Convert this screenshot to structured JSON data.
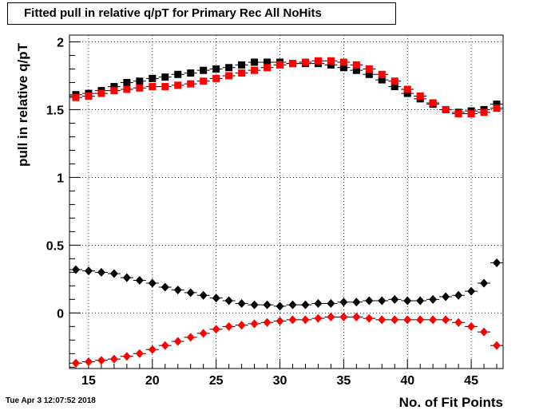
{
  "canvas": {
    "title": "Fitted pull in relative q/pT for Primary Rec All NoHits",
    "timestamp": "Tue Apr  3 12:07:52 2018"
  },
  "chart_data": {
    "type": "scatter",
    "title": "Fitted pull in relative q/pT for Primary Rec All NoHits",
    "xlabel": "No. of Fit Points",
    "ylabel": "pull in relative q/pT",
    "xlim": [
      13.5,
      47.5
    ],
    "ylim": [
      -0.41,
      2.05
    ],
    "xticks": [
      15,
      20,
      25,
      30,
      35,
      40,
      45
    ],
    "yticks": [
      0,
      0.5,
      1,
      1.5,
      2
    ],
    "ytick_labels": [
      "0",
      "0.5",
      "1",
      "1.5",
      "2"
    ],
    "grid": true,
    "x": [
      14,
      15,
      16,
      17,
      18,
      19,
      20,
      21,
      22,
      23,
      24,
      25,
      26,
      27,
      28,
      29,
      30,
      31,
      32,
      33,
      34,
      35,
      36,
      37,
      38,
      39,
      40,
      41,
      42,
      43,
      44,
      45,
      46,
      47
    ],
    "series": [
      {
        "color": "#000000",
        "marker": "square",
        "values": [
          1.61,
          1.62,
          1.64,
          1.67,
          1.7,
          1.71,
          1.73,
          1.74,
          1.76,
          1.77,
          1.79,
          1.8,
          1.81,
          1.83,
          1.85,
          1.85,
          1.85,
          1.84,
          1.84,
          1.84,
          1.83,
          1.81,
          1.79,
          1.76,
          1.72,
          1.67,
          1.62,
          1.58,
          1.54,
          1.5,
          1.48,
          1.49,
          1.5,
          1.54
        ]
      },
      {
        "color": "#ff0000",
        "marker": "square",
        "values": [
          1.59,
          1.6,
          1.62,
          1.64,
          1.65,
          1.66,
          1.67,
          1.67,
          1.68,
          1.69,
          1.71,
          1.73,
          1.75,
          1.77,
          1.79,
          1.81,
          1.83,
          1.84,
          1.85,
          1.86,
          1.86,
          1.85,
          1.83,
          1.8,
          1.76,
          1.71,
          1.65,
          1.6,
          1.55,
          1.5,
          1.47,
          1.47,
          1.48,
          1.51
        ]
      },
      {
        "color": "#000000",
        "marker": "diamond",
        "values": [
          0.32,
          0.31,
          0.3,
          0.29,
          0.26,
          0.24,
          0.22,
          0.19,
          0.17,
          0.15,
          0.13,
          0.11,
          0.09,
          0.07,
          0.06,
          0.06,
          0.05,
          0.06,
          0.06,
          0.07,
          0.07,
          0.08,
          0.08,
          0.09,
          0.09,
          0.1,
          0.09,
          0.09,
          0.1,
          0.12,
          0.13,
          0.16,
          0.22,
          0.37
        ]
      },
      {
        "color": "#ff0000",
        "marker": "diamond",
        "values": [
          -0.37,
          -0.36,
          -0.35,
          -0.34,
          -0.32,
          -0.3,
          -0.27,
          -0.24,
          -0.21,
          -0.18,
          -0.15,
          -0.12,
          -0.1,
          -0.09,
          -0.08,
          -0.07,
          -0.06,
          -0.05,
          -0.05,
          -0.04,
          -0.03,
          -0.03,
          -0.03,
          -0.04,
          -0.05,
          -0.05,
          -0.05,
          -0.05,
          -0.05,
          -0.05,
          -0.07,
          -0.1,
          -0.14,
          -0.24
        ]
      }
    ]
  }
}
